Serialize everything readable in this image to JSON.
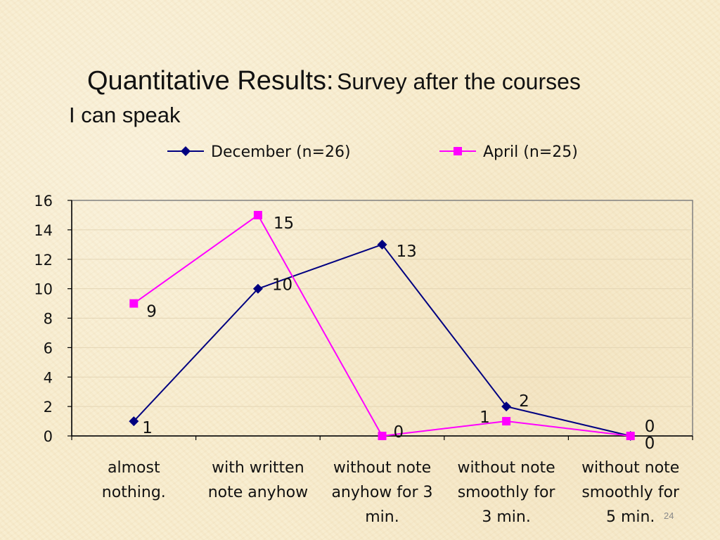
{
  "slide": {
    "title_main": "Quantitative Results:",
    "title_sub": "Survey after the courses",
    "subtitle": "I can speak",
    "page_number": "24"
  },
  "chart_data": {
    "type": "line",
    "title": "I can speak",
    "xlabel": "",
    "ylabel": "",
    "ylim": [
      0,
      16
    ],
    "yticks": [
      0,
      2,
      4,
      6,
      8,
      10,
      12,
      14,
      16
    ],
    "grid": true,
    "legend_position": "top",
    "categories": [
      [
        "almost",
        "nothing."
      ],
      [
        "with written",
        "note anyhow"
      ],
      [
        "without note",
        "anyhow for 3",
        "min."
      ],
      [
        "without note",
        "smoothly for",
        "3 min."
      ],
      [
        "without note",
        "smoothly for",
        "5 min."
      ]
    ],
    "series": [
      {
        "name": "December (n=26)",
        "color": "#000080",
        "marker": "diamond",
        "values": [
          1,
          10,
          13,
          2,
          0
        ]
      },
      {
        "name": "April (n=25)",
        "color": "#ff00ff",
        "marker": "square",
        "values": [
          9,
          15,
          0,
          1,
          0
        ]
      }
    ]
  }
}
